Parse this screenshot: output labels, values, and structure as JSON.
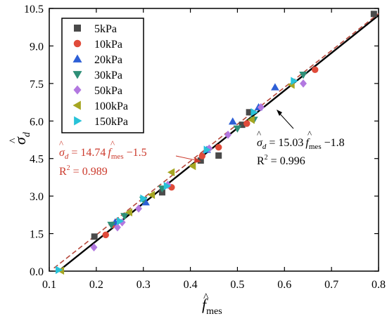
{
  "chart_data": {
    "type": "scatter",
    "title": "",
    "xlabel_base": "f",
    "xlabel_sub": "mes",
    "ylabel_base": "σ",
    "ylabel_sub": "d",
    "xlim": [
      0.1,
      0.8
    ],
    "ylim": [
      0.0,
      10.5
    ],
    "xticks": [
      "0.1",
      "0.2",
      "0.3",
      "0.4",
      "0.5",
      "0.6",
      "0.7",
      "0.8"
    ],
    "yticks": [
      "0.0",
      "1.5",
      "3.0",
      "4.5",
      "6.0",
      "7.5",
      "9.0",
      "10.5"
    ],
    "legend_position": "top-left",
    "grid": false,
    "series": [
      {
        "name": "5kPa",
        "marker": "square",
        "color": "#4a4a4a",
        "points": [
          [
            0.196,
            1.38
          ],
          [
            0.34,
            3.15
          ],
          [
            0.422,
            4.42
          ],
          [
            0.46,
            4.62
          ],
          [
            0.51,
            5.85
          ],
          [
            0.525,
            6.35
          ],
          [
            0.79,
            10.28
          ]
        ]
      },
      {
        "name": "10kPa",
        "marker": "circle",
        "color": "#e04b3a",
        "points": [
          [
            0.22,
            1.45
          ],
          [
            0.235,
            1.85
          ],
          [
            0.36,
            3.35
          ],
          [
            0.425,
            4.6
          ],
          [
            0.46,
            4.95
          ],
          [
            0.52,
            5.9
          ],
          [
            0.665,
            8.05
          ]
        ]
      },
      {
        "name": "20kPa",
        "marker": "triangle-up",
        "color": "#2d5fd6",
        "points": [
          [
            0.24,
            1.95
          ],
          [
            0.305,
            2.75
          ],
          [
            0.435,
            4.85
          ],
          [
            0.49,
            5.98
          ],
          [
            0.545,
            6.55
          ],
          [
            0.58,
            7.35
          ]
        ]
      },
      {
        "name": "30kPa",
        "marker": "triangle-down",
        "color": "#2e8f77",
        "points": [
          [
            0.232,
            1.85
          ],
          [
            0.26,
            2.2
          ],
          [
            0.3,
            2.85
          ],
          [
            0.34,
            3.3
          ],
          [
            0.5,
            5.7
          ],
          [
            0.535,
            6.05
          ],
          [
            0.64,
            7.85
          ]
        ]
      },
      {
        "name": "50kPa",
        "marker": "diamond",
        "color": "#b278e0",
        "points": [
          [
            0.195,
            0.95
          ],
          [
            0.245,
            1.75
          ],
          [
            0.255,
            1.95
          ],
          [
            0.29,
            2.5
          ],
          [
            0.352,
            3.45
          ],
          [
            0.44,
            4.9
          ],
          [
            0.48,
            5.45
          ],
          [
            0.55,
            6.55
          ],
          [
            0.64,
            7.5
          ]
        ]
      },
      {
        "name": "100kPa",
        "marker": "triangle-left",
        "color": "#a6a622",
        "points": [
          [
            0.125,
            0.02
          ],
          [
            0.27,
            2.35
          ],
          [
            0.318,
            3.05
          ],
          [
            0.36,
            3.95
          ],
          [
            0.405,
            4.2
          ],
          [
            0.53,
            6.05
          ],
          [
            0.615,
            7.45
          ]
        ]
      },
      {
        "name": "150kPa",
        "marker": "triangle-right",
        "color": "#28c2d8",
        "points": [
          [
            0.12,
            0.05
          ],
          [
            0.25,
            2.0
          ],
          [
            0.3,
            2.9
          ],
          [
            0.35,
            3.4
          ],
          [
            0.435,
            4.85
          ],
          [
            0.535,
            6.35
          ],
          [
            0.62,
            7.6
          ]
        ]
      }
    ],
    "fit_lines": [
      {
        "style": "solid",
        "color": "#000000",
        "slope": 15.03,
        "intercept": -1.8,
        "x_range": [
          0.12,
          0.8
        ]
      },
      {
        "style": "dashed",
        "color": "#b5473a",
        "slope": 14.74,
        "intercept": -1.5,
        "x_range": [
          0.11,
          0.8
        ]
      }
    ],
    "annotations": {
      "solid_eq_lhs": "σ",
      "solid_eq_lhs_sub": "d",
      "solid_eq_mid": " = 15.03",
      "solid_eq_f": "f",
      "solid_eq_f_sub": "mes",
      "solid_eq_tail": " −1.8",
      "solid_r2": "R",
      "solid_r2_val": " = 0.996",
      "dashed_eq_lhs": "σ",
      "dashed_eq_lhs_sub": "d",
      "dashed_eq_mid": " = 14.74",
      "dashed_eq_f": "f",
      "dashed_eq_f_sub": "mes",
      "dashed_eq_tail": " −1.5",
      "dashed_r2": "R",
      "dashed_r2_val": " = 0.989",
      "sup2": "2",
      "hat": "^",
      "dashed_color": "#cc3a2c"
    }
  }
}
